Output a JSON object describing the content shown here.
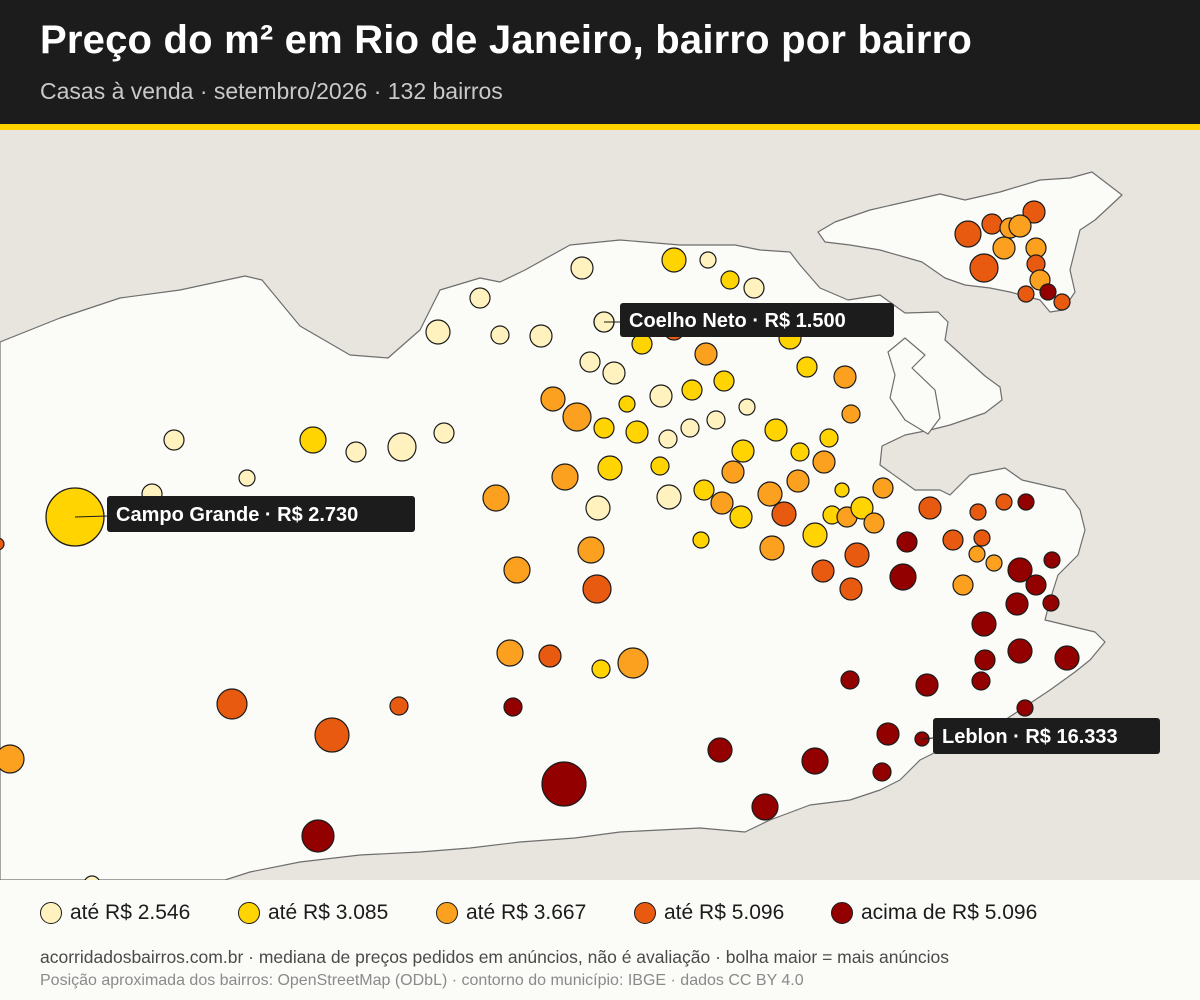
{
  "header": {
    "title": "Preço do m² em Rio de Janeiro, bairro por bairro",
    "subtitle": "Casas à venda · setembro/2026 · 132 bairros"
  },
  "colors": {
    "header_bg": "#1c1c1c",
    "accent_stripe": "#ffd200",
    "land": "#fbfbf8",
    "water": "#e8e5df",
    "classes": [
      "#fff2bf",
      "#ffd400",
      "#fba11f",
      "#e85a10",
      "#930000"
    ]
  },
  "legend": [
    {
      "label": "até R$ 2.546",
      "color": "#fff2bf"
    },
    {
      "label": "até R$ 3.085",
      "color": "#ffd400"
    },
    {
      "label": "até R$ 3.667",
      "color": "#fba11f"
    },
    {
      "label": "até R$ 5.096",
      "color": "#e85a10"
    },
    {
      "label": "acima de R$ 5.096",
      "color": "#930000"
    }
  ],
  "callouts": [
    {
      "label": "Coelho Neto · R$ 1.500"
    },
    {
      "label": "Campo Grande · R$ 2.730"
    },
    {
      "label": "Leblon · R$ 16.333"
    }
  ],
  "footer": {
    "line1": "acorridadosbairros.com.br · mediana de preços pedidos em anúncios, não é avaliação · bolha maior = mais anúncios",
    "line2": "Posição aproximada dos bairros: OpenStreetMap (ODbL) · contorno do município: IBGE · dados CC BY 4.0"
  }
}
